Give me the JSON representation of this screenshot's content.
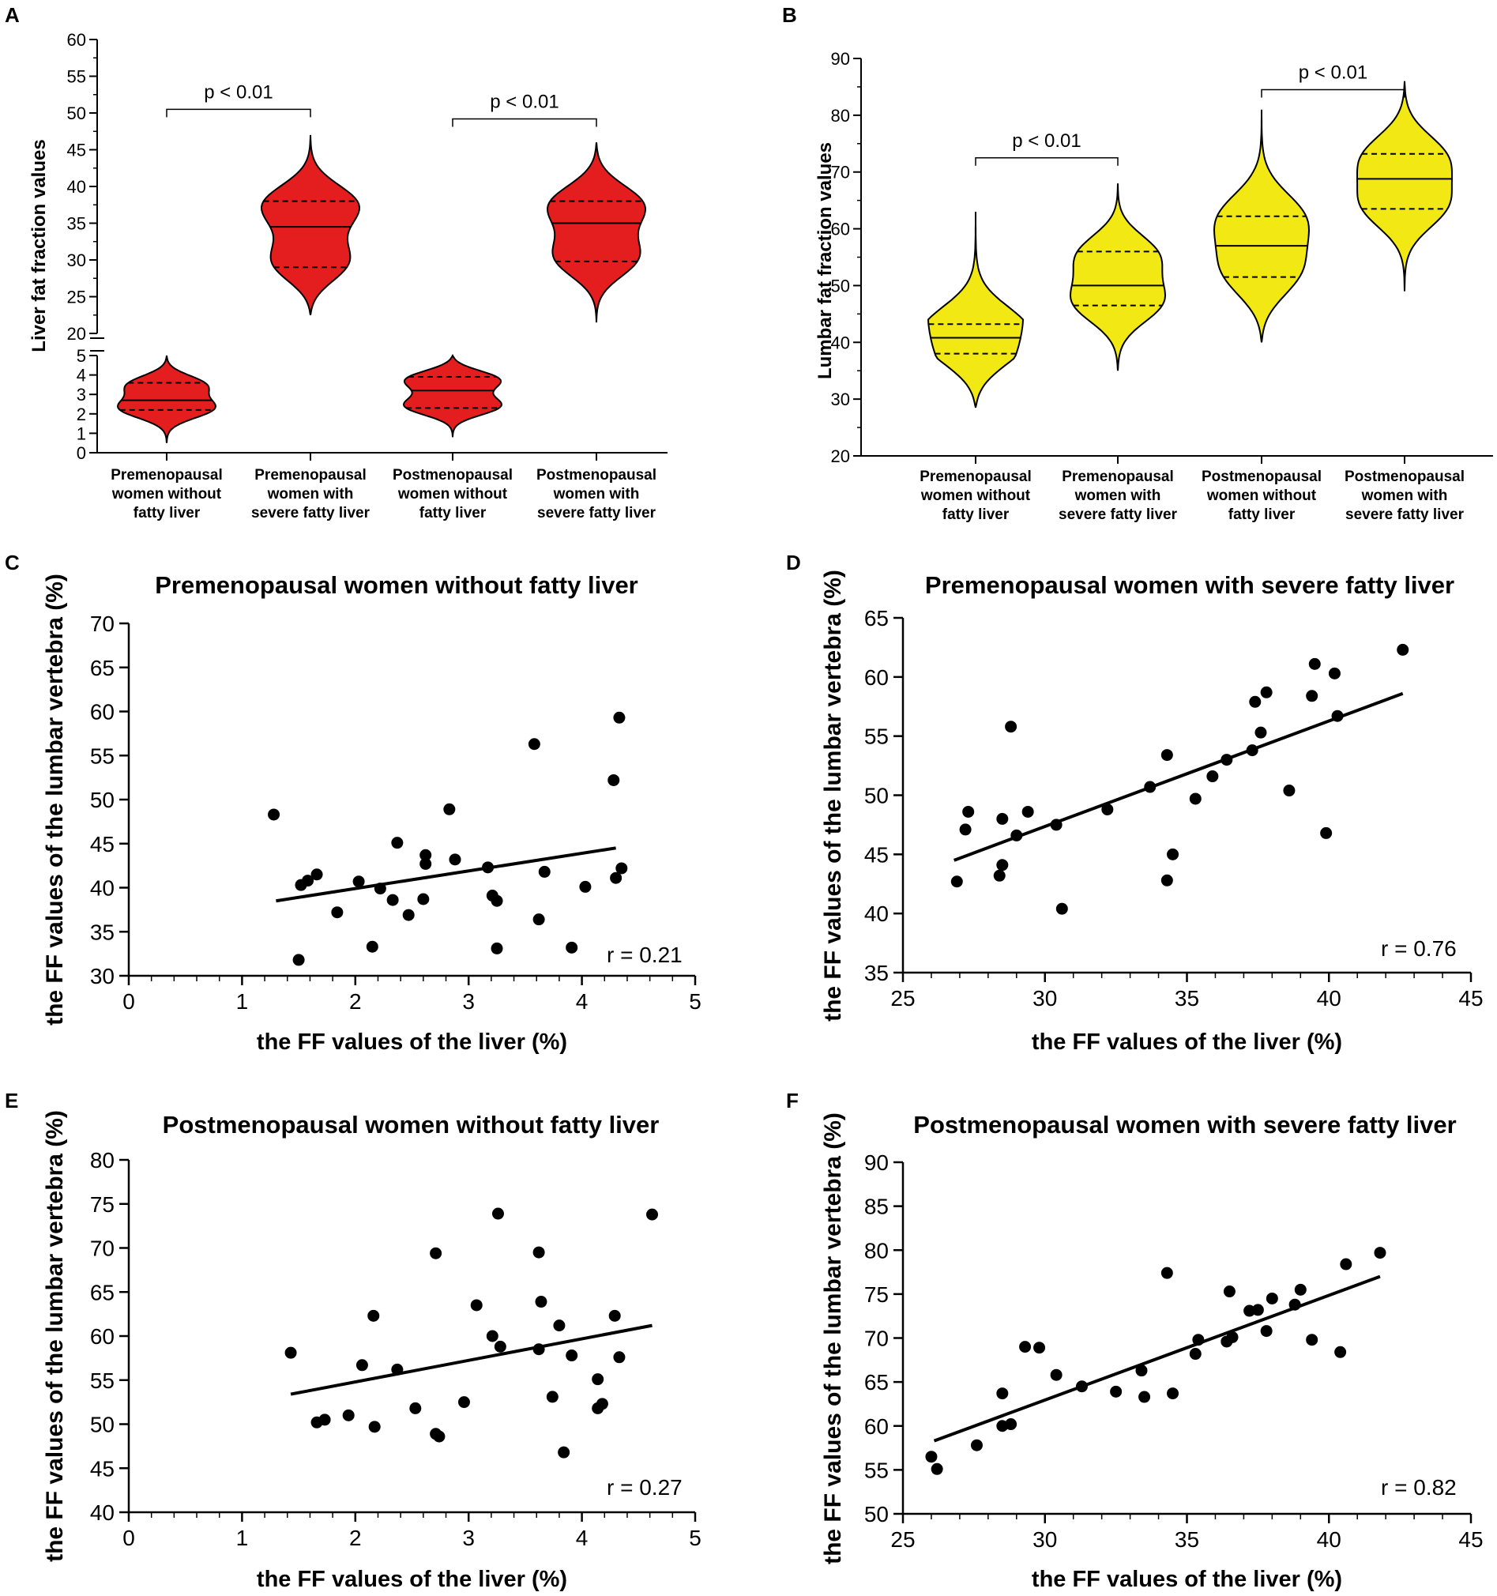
{
  "chart_data": [
    {
      "panel": "A",
      "type": "violin",
      "ylabel": "Liver fat fraction values",
      "y_axis_break": {
        "lower_range": [
          0,
          5
        ],
        "upper_range": [
          20,
          60
        ]
      },
      "categories": [
        [
          "Premenopausal",
          "women without",
          "fatty liver"
        ],
        [
          "Premenopausal",
          "women with",
          "severe fatty liver"
        ],
        [
          "Postmenopausal",
          "women without",
          "fatty liver"
        ],
        [
          "Postmenopausal",
          "women with",
          "severe fatty liver"
        ]
      ],
      "fill_color": "#e41e1e",
      "violins": [
        {
          "min": 0.5,
          "max": 5.0,
          "median": 2.7,
          "q1": 2.2,
          "q3": 3.6
        },
        {
          "min": 22.5,
          "max": 47.0,
          "median": 34.5,
          "q1": 29.0,
          "q3": 38.0
        },
        {
          "min": 0.8,
          "max": 5.0,
          "median": 3.2,
          "q1": 2.3,
          "q3": 3.9
        },
        {
          "min": 21.5,
          "max": 46.0,
          "median": 35.0,
          "q1": 29.8,
          "q3": 38.0
        }
      ],
      "comparisons": [
        {
          "from": 0,
          "to": 1,
          "label": "p < 0.01",
          "y": 50.5
        },
        {
          "from": 2,
          "to": 3,
          "label": "p < 0.01",
          "y": 49.2
        }
      ],
      "ytick_labels_lower": [
        "0",
        "1",
        "2",
        "3",
        "4",
        "5"
      ],
      "ytick_labels_upper": [
        "20",
        "25",
        "30",
        "35",
        "40",
        "45",
        "50",
        "55",
        "60"
      ]
    },
    {
      "panel": "B",
      "type": "violin",
      "ylabel": "Lumbar fat fraction values",
      "ylim": [
        20,
        90
      ],
      "ytick_labels": [
        "20",
        "30",
        "40",
        "50",
        "60",
        "70",
        "80",
        "90"
      ],
      "categories": [
        [
          "Premenopausal",
          "women without",
          "fatty liver"
        ],
        [
          "Premenopausal",
          "women with",
          "severe fatty liver"
        ],
        [
          "Postmenopausal",
          "women without",
          "fatty liver"
        ],
        [
          "Postmenopausal",
          "women with",
          "severe fatty liver"
        ]
      ],
      "fill_color": "#f2e813",
      "violins": [
        {
          "min": 28.5,
          "max": 63.0,
          "median": 40.8,
          "q1": 38.0,
          "q3": 43.2
        },
        {
          "min": 35.0,
          "max": 68.0,
          "median": 50.0,
          "q1": 46.5,
          "q3": 56.0
        },
        {
          "min": 40.0,
          "max": 81.0,
          "median": 57.0,
          "q1": 51.5,
          "q3": 62.2
        },
        {
          "min": 49.0,
          "max": 86.0,
          "median": 68.8,
          "q1": 63.5,
          "q3": 73.2
        }
      ],
      "comparisons": [
        {
          "from": 0,
          "to": 1,
          "label": "p < 0.01",
          "y": 72.5
        },
        {
          "from": 2,
          "to": 3,
          "label": "p < 0.01",
          "y": 84.5
        }
      ]
    },
    {
      "panel": "C",
      "type": "scatter",
      "title": "Premenopausal women without fatty liver",
      "xlabel": "the FF values of the liver (%)",
      "ylabel": "the FF values of the lumbar vertebra (%)",
      "xlim": [
        0,
        5
      ],
      "ylim": [
        30,
        70
      ],
      "xtick_labels": [
        "0",
        "1",
        "2",
        "3",
        "4",
        "5"
      ],
      "ytick_labels": [
        "30",
        "35",
        "40",
        "45",
        "50",
        "55",
        "60",
        "65",
        "70"
      ],
      "r_label": "r = 0.21",
      "fit_line": [
        [
          1.3,
          38.5
        ],
        [
          4.3,
          44.5
        ]
      ],
      "points": [
        [
          1.28,
          48.3
        ],
        [
          1.5,
          31.8
        ],
        [
          1.52,
          40.3
        ],
        [
          1.58,
          40.8
        ],
        [
          1.66,
          41.5
        ],
        [
          1.84,
          37.2
        ],
        [
          2.03,
          40.7
        ],
        [
          2.15,
          33.3
        ],
        [
          2.22,
          39.9
        ],
        [
          2.33,
          38.6
        ],
        [
          2.37,
          45.1
        ],
        [
          2.47,
          36.9
        ],
        [
          2.6,
          38.7
        ],
        [
          2.62,
          43.7
        ],
        [
          2.62,
          42.7
        ],
        [
          2.83,
          48.9
        ],
        [
          2.88,
          43.2
        ],
        [
          3.17,
          42.3
        ],
        [
          3.21,
          39.1
        ],
        [
          3.25,
          38.5
        ],
        [
          3.25,
          33.1
        ],
        [
          3.58,
          56.3
        ],
        [
          3.62,
          36.4
        ],
        [
          3.67,
          41.8
        ],
        [
          3.91,
          33.2
        ],
        [
          4.03,
          40.1
        ],
        [
          4.28,
          52.2
        ],
        [
          4.3,
          41.1
        ],
        [
          4.33,
          59.3
        ],
        [
          4.35,
          42.2
        ]
      ]
    },
    {
      "panel": "D",
      "type": "scatter",
      "title": "Premenopausal women with severe fatty liver",
      "xlabel": "the FF values of the liver (%)",
      "ylabel": "the FF values of the lumbar vertebra (%)",
      "xlim": [
        25,
        45
      ],
      "ylim": [
        35,
        65
      ],
      "xtick_labels": [
        "25",
        "30",
        "35",
        "40",
        "45"
      ],
      "ytick_labels": [
        "35",
        "40",
        "45",
        "50",
        "55",
        "60",
        "65"
      ],
      "r_label": "r = 0.76",
      "fit_line": [
        [
          26.8,
          44.5
        ],
        [
          42.6,
          58.6
        ]
      ],
      "points": [
        [
          26.9,
          42.7
        ],
        [
          27.2,
          47.1
        ],
        [
          27.3,
          48.6
        ],
        [
          28.4,
          43.2
        ],
        [
          28.5,
          44.1
        ],
        [
          28.5,
          48.0
        ],
        [
          28.8,
          55.8
        ],
        [
          29.0,
          46.6
        ],
        [
          29.4,
          48.6
        ],
        [
          30.4,
          47.5
        ],
        [
          30.6,
          40.4
        ],
        [
          32.2,
          48.8
        ],
        [
          33.7,
          50.7
        ],
        [
          34.3,
          42.8
        ],
        [
          34.3,
          53.4
        ],
        [
          34.5,
          45.0
        ],
        [
          35.3,
          49.7
        ],
        [
          35.9,
          51.6
        ],
        [
          36.4,
          53.0
        ],
        [
          37.3,
          53.8
        ],
        [
          37.4,
          57.9
        ],
        [
          37.6,
          55.3
        ],
        [
          37.8,
          58.7
        ],
        [
          38.6,
          50.4
        ],
        [
          39.4,
          58.4
        ],
        [
          39.5,
          61.1
        ],
        [
          39.9,
          46.8
        ],
        [
          40.2,
          60.3
        ],
        [
          40.3,
          56.7
        ],
        [
          42.6,
          62.3
        ]
      ]
    },
    {
      "panel": "E",
      "type": "scatter",
      "title": "Postmenopausal women without fatty liver",
      "xlabel": "the FF values of the liver (%)",
      "ylabel": "the FF values of the lumbar vertebra (%)",
      "xlim": [
        0,
        5
      ],
      "ylim": [
        40,
        80
      ],
      "xtick_labels": [
        "0",
        "1",
        "2",
        "3",
        "4",
        "5"
      ],
      "ytick_labels": [
        "40",
        "45",
        "50",
        "55",
        "60",
        "65",
        "70",
        "75",
        "80"
      ],
      "r_label": "r = 0.27",
      "fit_line": [
        [
          1.43,
          53.4
        ],
        [
          4.62,
          61.2
        ]
      ],
      "points": [
        [
          1.43,
          58.1
        ],
        [
          1.66,
          50.2
        ],
        [
          1.73,
          50.5
        ],
        [
          1.94,
          51.0
        ],
        [
          2.06,
          56.7
        ],
        [
          2.16,
          62.3
        ],
        [
          2.17,
          49.7
        ],
        [
          2.37,
          56.2
        ],
        [
          2.53,
          51.8
        ],
        [
          2.71,
          48.9
        ],
        [
          2.71,
          69.4
        ],
        [
          2.74,
          48.6
        ],
        [
          2.96,
          52.5
        ],
        [
          3.07,
          63.5
        ],
        [
          3.21,
          60.0
        ],
        [
          3.26,
          73.9
        ],
        [
          3.28,
          58.8
        ],
        [
          3.62,
          69.5
        ],
        [
          3.62,
          58.5
        ],
        [
          3.64,
          63.9
        ],
        [
          3.74,
          53.1
        ],
        [
          3.8,
          61.2
        ],
        [
          3.84,
          46.8
        ],
        [
          3.91,
          57.8
        ],
        [
          4.14,
          55.1
        ],
        [
          4.14,
          51.8
        ],
        [
          4.18,
          52.3
        ],
        [
          4.29,
          62.3
        ],
        [
          4.33,
          57.6
        ],
        [
          4.62,
          73.8
        ]
      ]
    },
    {
      "panel": "F",
      "type": "scatter",
      "title": "Postmenopausal women with severe fatty liver",
      "xlabel": "the FF values of the liver (%)",
      "ylabel": "the FF values of the lumbar vertebra (%)",
      "xlim": [
        25,
        45
      ],
      "ylim": [
        50,
        90
      ],
      "xtick_labels": [
        "25",
        "30",
        "35",
        "40",
        "45"
      ],
      "ytick_labels": [
        "50",
        "55",
        "60",
        "65",
        "70",
        "75",
        "80",
        "85",
        "90"
      ],
      "r_label": "r = 0.82",
      "fit_line": [
        [
          26.1,
          58.3
        ],
        [
          41.8,
          77.0
        ]
      ],
      "points": [
        [
          26.0,
          56.5
        ],
        [
          26.2,
          55.1
        ],
        [
          27.6,
          57.8
        ],
        [
          28.5,
          63.7
        ],
        [
          28.5,
          60.0
        ],
        [
          28.8,
          60.2
        ],
        [
          29.3,
          69.0
        ],
        [
          29.8,
          68.9
        ],
        [
          30.4,
          65.8
        ],
        [
          31.3,
          64.5
        ],
        [
          32.5,
          63.9
        ],
        [
          33.4,
          66.3
        ],
        [
          33.5,
          63.3
        ],
        [
          34.3,
          77.4
        ],
        [
          34.5,
          63.7
        ],
        [
          35.3,
          68.2
        ],
        [
          35.4,
          69.8
        ],
        [
          36.4,
          69.6
        ],
        [
          36.5,
          75.3
        ],
        [
          36.6,
          70.1
        ],
        [
          37.2,
          73.1
        ],
        [
          37.5,
          73.2
        ],
        [
          37.8,
          70.8
        ],
        [
          38.0,
          74.5
        ],
        [
          38.8,
          73.8
        ],
        [
          39.0,
          75.5
        ],
        [
          39.4,
          69.8
        ],
        [
          40.4,
          68.4
        ],
        [
          40.6,
          78.4
        ],
        [
          41.8,
          79.7
        ]
      ]
    }
  ]
}
